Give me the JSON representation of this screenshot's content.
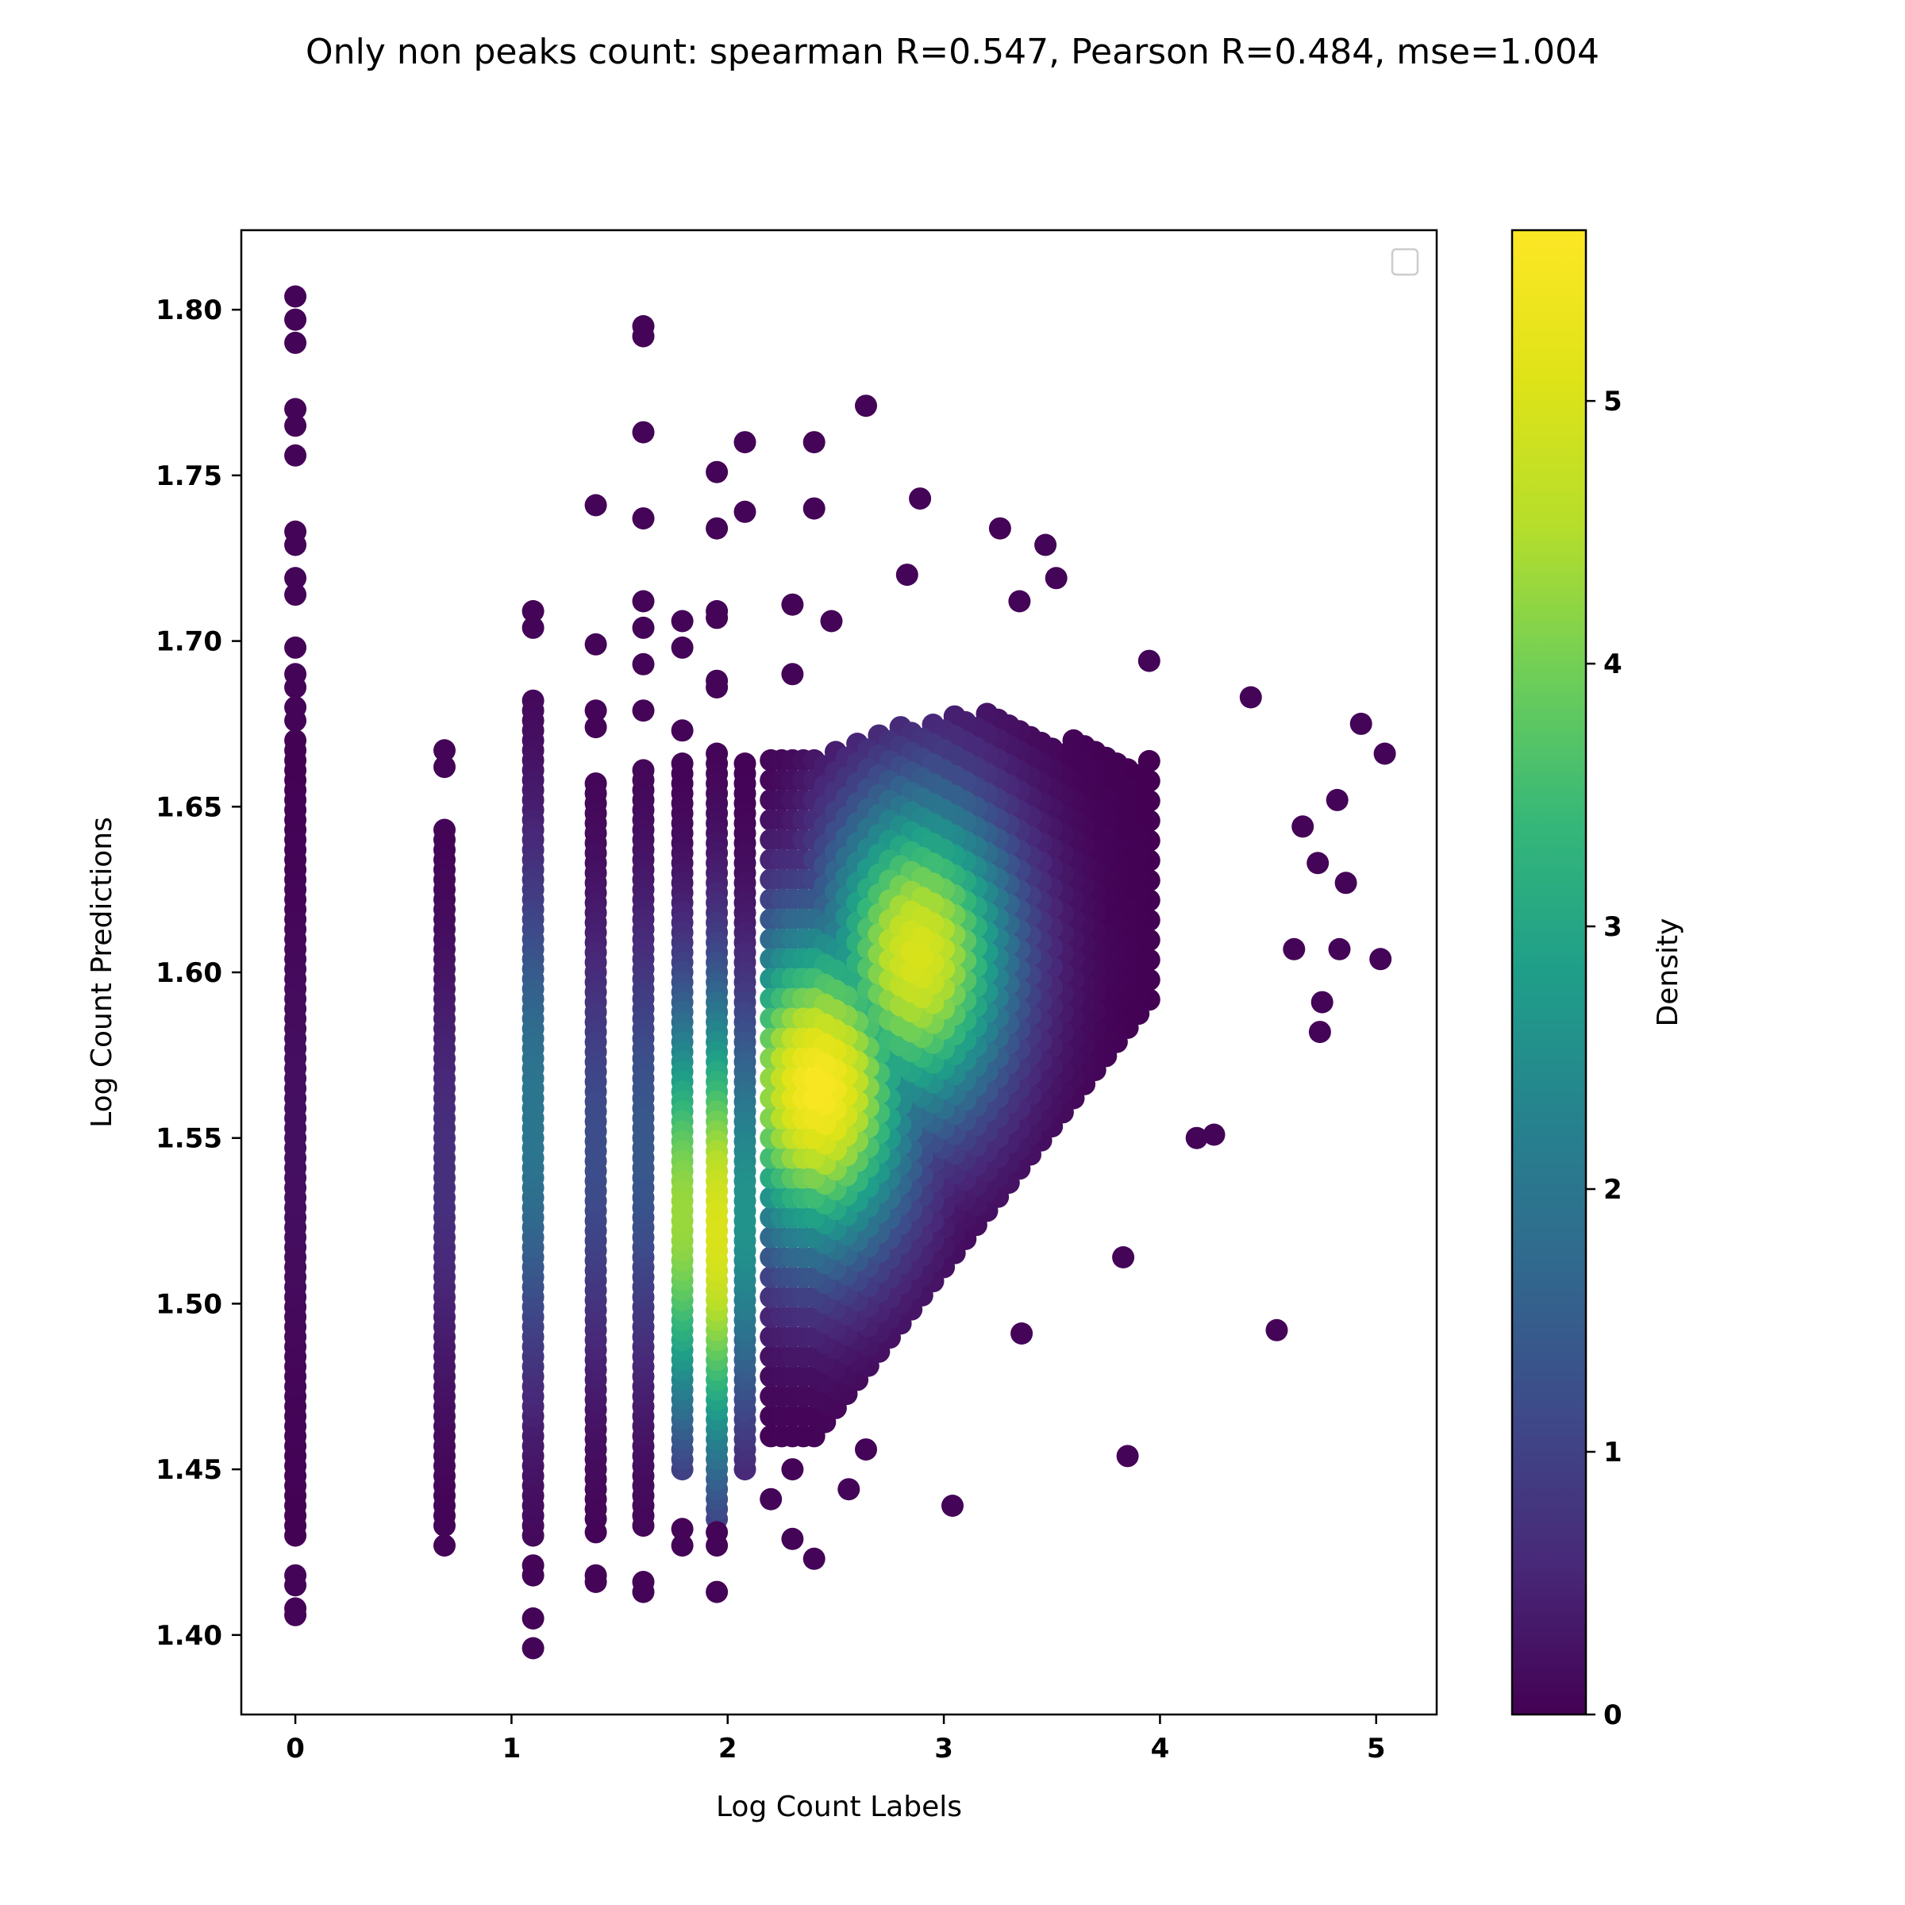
{
  "chart_data": {
    "type": "scatter",
    "title": "Only non peaks count: spearman R=0.547, Pearson R=0.484, mse=1.004",
    "xlabel": "Log Count Labels",
    "ylabel": "Log Count Predictions",
    "xlim": [
      -0.25,
      5.28
    ],
    "ylim": [
      1.376,
      1.824
    ],
    "xticks": [
      "0",
      "1",
      "2",
      "3",
      "4",
      "5"
    ],
    "yticks": [
      "1.40",
      "1.45",
      "1.50",
      "1.55",
      "1.60",
      "1.65",
      "1.70",
      "1.75",
      "1.80"
    ],
    "grid": false,
    "legend": "upper right (empty)",
    "colormap": "viridis",
    "colorbar": {
      "label": "Density",
      "range": [
        0,
        5.65
      ],
      "ticks": [
        "0",
        "1",
        "2",
        "3",
        "4",
        "5"
      ]
    },
    "columns": [
      {
        "x": 0.0,
        "y_min": 1.43,
        "y_max": 1.67,
        "peak_density": 0.2
      },
      {
        "x": 0.69,
        "y_min": 1.433,
        "y_max": 1.645,
        "peak_density": 0.7
      },
      {
        "x": 1.1,
        "y_min": 1.43,
        "y_max": 1.682,
        "peak_density": 2.0
      },
      {
        "x": 1.39,
        "y_min": 1.435,
        "y_max": 1.657,
        "peak_density": 1.2
      },
      {
        "x": 1.61,
        "y_min": 1.433,
        "y_max": 1.662,
        "peak_density": 1.4
      },
      {
        "x": 1.79,
        "y_min": 1.45,
        "y_max": 1.663,
        "peak_density": 4.3
      },
      {
        "x": 1.95,
        "y_min": 1.435,
        "y_max": 1.668,
        "peak_density": 5.0
      },
      {
        "x": 2.08,
        "y_min": 1.45,
        "y_max": 1.665,
        "peak_density": 2.6
      }
    ],
    "density_peaks": [
      {
        "x": 2.42,
        "y": 1.565,
        "density": 5.6
      },
      {
        "x": 2.88,
        "y": 1.605,
        "density": 5.0
      }
    ],
    "points": [
      {
        "x": 0.0,
        "y": 1.804
      },
      {
        "x": 0.0,
        "y": 1.797
      },
      {
        "x": 0.0,
        "y": 1.79
      },
      {
        "x": 0.0,
        "y": 1.77
      },
      {
        "x": 0.0,
        "y": 1.765
      },
      {
        "x": 0.0,
        "y": 1.756
      },
      {
        "x": 0.0,
        "y": 1.733
      },
      {
        "x": 0.0,
        "y": 1.729
      },
      {
        "x": 0.0,
        "y": 1.719
      },
      {
        "x": 0.0,
        "y": 1.714
      },
      {
        "x": 0.0,
        "y": 1.698
      },
      {
        "x": 0.0,
        "y": 1.69
      },
      {
        "x": 0.0,
        "y": 1.686
      },
      {
        "x": 0.0,
        "y": 1.68
      },
      {
        "x": 0.0,
        "y": 1.676
      },
      {
        "x": 0.0,
        "y": 1.418
      },
      {
        "x": 0.0,
        "y": 1.415
      },
      {
        "x": 0.0,
        "y": 1.408
      },
      {
        "x": 0.0,
        "y": 1.406
      },
      {
        "x": 0.69,
        "y": 1.667
      },
      {
        "x": 0.69,
        "y": 1.662
      },
      {
        "x": 0.69,
        "y": 1.427
      },
      {
        "x": 1.1,
        "y": 1.709
      },
      {
        "x": 1.1,
        "y": 1.704
      },
      {
        "x": 1.1,
        "y": 1.421
      },
      {
        "x": 1.1,
        "y": 1.418
      },
      {
        "x": 1.1,
        "y": 1.405
      },
      {
        "x": 1.1,
        "y": 1.396
      },
      {
        "x": 1.39,
        "y": 1.741
      },
      {
        "x": 1.39,
        "y": 1.699
      },
      {
        "x": 1.39,
        "y": 1.679
      },
      {
        "x": 1.39,
        "y": 1.674
      },
      {
        "x": 1.39,
        "y": 1.431
      },
      {
        "x": 1.39,
        "y": 1.418
      },
      {
        "x": 1.39,
        "y": 1.416
      },
      {
        "x": 1.61,
        "y": 1.795
      },
      {
        "x": 1.61,
        "y": 1.792
      },
      {
        "x": 1.61,
        "y": 1.763
      },
      {
        "x": 1.61,
        "y": 1.737
      },
      {
        "x": 1.61,
        "y": 1.712
      },
      {
        "x": 1.61,
        "y": 1.704
      },
      {
        "x": 1.61,
        "y": 1.693
      },
      {
        "x": 1.61,
        "y": 1.679
      },
      {
        "x": 1.61,
        "y": 1.416
      },
      {
        "x": 1.61,
        "y": 1.413
      },
      {
        "x": 1.79,
        "y": 1.706
      },
      {
        "x": 1.79,
        "y": 1.698
      },
      {
        "x": 1.79,
        "y": 1.673
      },
      {
        "x": 1.79,
        "y": 1.432
      },
      {
        "x": 1.79,
        "y": 1.427
      },
      {
        "x": 1.95,
        "y": 1.751
      },
      {
        "x": 1.95,
        "y": 1.734
      },
      {
        "x": 1.95,
        "y": 1.709
      },
      {
        "x": 1.95,
        "y": 1.707
      },
      {
        "x": 1.95,
        "y": 1.688
      },
      {
        "x": 1.95,
        "y": 1.686
      },
      {
        "x": 1.95,
        "y": 1.431
      },
      {
        "x": 1.95,
        "y": 1.427
      },
      {
        "x": 1.95,
        "y": 1.413
      },
      {
        "x": 2.08,
        "y": 1.76
      },
      {
        "x": 2.08,
        "y": 1.739
      },
      {
        "x": 2.2,
        "y": 1.441
      },
      {
        "x": 2.3,
        "y": 1.711
      },
      {
        "x": 2.3,
        "y": 1.69
      },
      {
        "x": 2.3,
        "y": 1.45
      },
      {
        "x": 2.3,
        "y": 1.429
      },
      {
        "x": 2.4,
        "y": 1.76
      },
      {
        "x": 2.4,
        "y": 1.74
      },
      {
        "x": 2.4,
        "y": 1.423
      },
      {
        "x": 2.48,
        "y": 1.706
      },
      {
        "x": 2.56,
        "y": 1.444
      },
      {
        "x": 2.64,
        "y": 1.771
      },
      {
        "x": 2.64,
        "y": 1.456
      },
      {
        "x": 2.83,
        "y": 1.72
      },
      {
        "x": 2.89,
        "y": 1.743
      },
      {
        "x": 3.04,
        "y": 1.439
      },
      {
        "x": 3.26,
        "y": 1.734
      },
      {
        "x": 3.35,
        "y": 1.712
      },
      {
        "x": 3.36,
        "y": 1.491
      },
      {
        "x": 3.47,
        "y": 1.729
      },
      {
        "x": 3.52,
        "y": 1.719
      },
      {
        "x": 3.83,
        "y": 1.514
      },
      {
        "x": 3.85,
        "y": 1.454
      },
      {
        "x": 3.95,
        "y": 1.694
      },
      {
        "x": 4.17,
        "y": 1.55
      },
      {
        "x": 4.25,
        "y": 1.551
      },
      {
        "x": 4.42,
        "y": 1.683
      },
      {
        "x": 4.54,
        "y": 1.492
      },
      {
        "x": 4.62,
        "y": 1.607
      },
      {
        "x": 4.66,
        "y": 1.644
      },
      {
        "x": 4.73,
        "y": 1.633
      },
      {
        "x": 4.74,
        "y": 1.582
      },
      {
        "x": 4.75,
        "y": 1.591
      },
      {
        "x": 4.82,
        "y": 1.652
      },
      {
        "x": 4.83,
        "y": 1.607
      },
      {
        "x": 4.86,
        "y": 1.627
      },
      {
        "x": 4.93,
        "y": 1.675
      },
      {
        "x": 5.02,
        "y": 1.604
      },
      {
        "x": 5.04,
        "y": 1.666
      }
    ]
  }
}
